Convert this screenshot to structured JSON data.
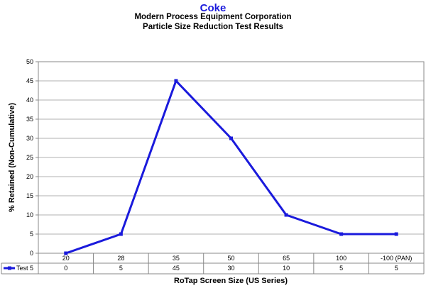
{
  "chart_data": {
    "type": "line",
    "title": "Coke",
    "subtitle": [
      "Modern Process Equipment Corporation",
      "Particle Size Reduction Test Results"
    ],
    "xlabel": "RoTap Screen Size (US Series)",
    "ylabel": "% Retained (Non-Cumulative)",
    "categories": [
      "20",
      "28",
      "35",
      "50",
      "65",
      "100",
      "-100 (PAN)"
    ],
    "ylim": [
      0,
      50
    ],
    "yticks": [
      0,
      5,
      10,
      15,
      20,
      25,
      30,
      35,
      40,
      45,
      50
    ],
    "grid": true,
    "legend": "data-table",
    "series": [
      {
        "name": "Test 5",
        "color": "#1a1adc",
        "values": [
          0,
          5,
          45,
          30,
          10,
          5,
          5
        ]
      }
    ]
  }
}
